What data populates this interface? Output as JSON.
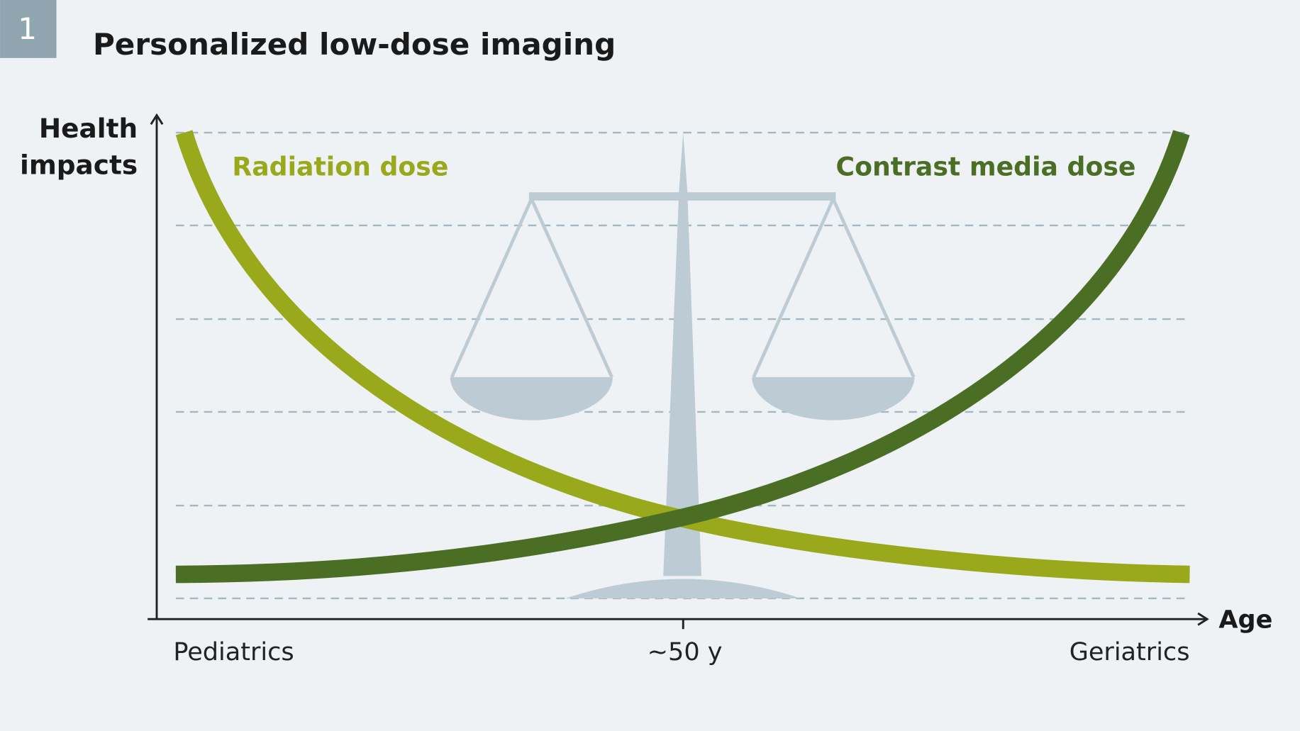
{
  "badge": "1",
  "title": "Personalized low-dose imaging",
  "y_axis_label": [
    "Health",
    "impacts"
  ],
  "x_axis_label": "Age",
  "curves": [
    {
      "label": "Radiation dose"
    },
    {
      "label": "Contrast media dose"
    }
  ],
  "x_labels": [
    "Pediatrics",
    "~50 y",
    "Geriatrics"
  ]
}
